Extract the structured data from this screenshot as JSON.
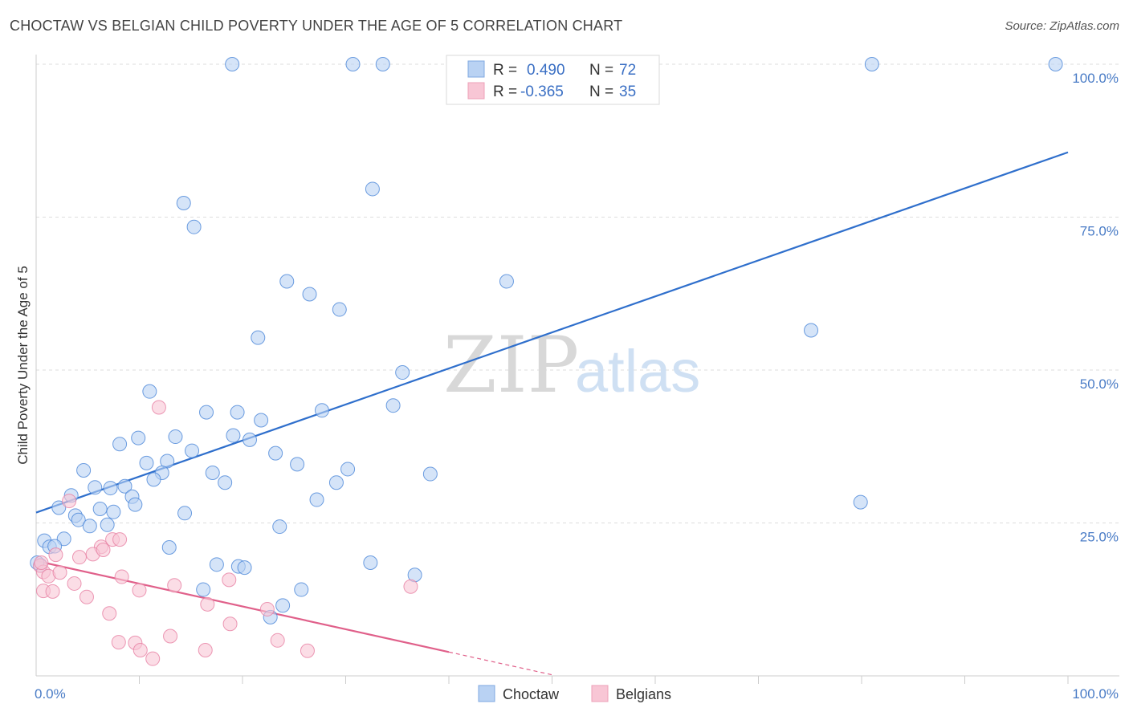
{
  "header": {
    "title": "CHOCTAW VS BELGIAN CHILD POVERTY UNDER THE AGE OF 5 CORRELATION CHART",
    "source": "Source: ZipAtlas.com"
  },
  "watermark": {
    "zip": "ZIP",
    "atlas": "atlas"
  },
  "legend": {
    "rows": [
      {
        "r_label": "R =",
        "r_value": "0.490",
        "n_label": "N =",
        "n_value": "72",
        "color": "#b9d2f3"
      },
      {
        "r_label": "R =",
        "r_value": "-0.365",
        "n_label": "N =",
        "n_value": "35",
        "color": "#f8c6d5"
      }
    ]
  },
  "chart_data": {
    "type": "scatter",
    "title": "CHOCTAW VS BELGIAN CHILD POVERTY UNDER THE AGE OF 5 CORRELATION CHART",
    "xlabel": "",
    "ylabel": "Child Poverty Under the Age of 5",
    "xlim": [
      0,
      100
    ],
    "ylim": [
      0,
      100
    ],
    "x_tick_labels": [
      "0.0%",
      "100.0%"
    ],
    "y_tick_labels": [
      "25.0%",
      "50.0%",
      "75.0%",
      "100.0%"
    ],
    "y_tick_values": [
      25,
      50,
      75,
      100
    ],
    "legend_position": "top-center",
    "series": [
      {
        "name": "Choctaw",
        "color": "#4a86d8",
        "fill": "#b9d2f3",
        "trend": {
          "x": [
            0,
            100
          ],
          "y": [
            26.7,
            85.6
          ],
          "color": "#2f6fcc"
        },
        "points": [
          [
            19,
            100
          ],
          [
            30.7,
            100
          ],
          [
            33.6,
            100
          ],
          [
            81,
            100
          ],
          [
            98.8,
            100
          ],
          [
            32.6,
            79.6
          ],
          [
            14.3,
            77.3
          ],
          [
            15.3,
            73.4
          ],
          [
            24.3,
            64.5
          ],
          [
            45.6,
            64.5
          ],
          [
            26.5,
            62.4
          ],
          [
            29.4,
            59.9
          ],
          [
            75.1,
            56.5
          ],
          [
            21.5,
            55.3
          ],
          [
            35.5,
            49.6
          ],
          [
            11,
            46.5
          ],
          [
            34.6,
            44.2
          ],
          [
            27.7,
            43.4
          ],
          [
            16.5,
            43.1
          ],
          [
            19.5,
            43.1
          ],
          [
            21.8,
            41.8
          ],
          [
            9.9,
            38.9
          ],
          [
            13.5,
            39.1
          ],
          [
            19.1,
            39.3
          ],
          [
            20.7,
            38.6
          ],
          [
            8.1,
            37.9
          ],
          [
            15.1,
            36.8
          ],
          [
            23.2,
            36.4
          ],
          [
            10.7,
            34.8
          ],
          [
            12.7,
            35.1
          ],
          [
            25.3,
            34.6
          ],
          [
            4.6,
            33.6
          ],
          [
            12.2,
            33.2
          ],
          [
            17.1,
            33.2
          ],
          [
            30.2,
            33.8
          ],
          [
            38.2,
            33
          ],
          [
            11.4,
            32.1
          ],
          [
            18.3,
            31.6
          ],
          [
            29.1,
            31.6
          ],
          [
            8.6,
            31
          ],
          [
            5.7,
            30.8
          ],
          [
            7.2,
            30.7
          ],
          [
            9.3,
            29.3
          ],
          [
            3.4,
            29.5
          ],
          [
            27.2,
            28.8
          ],
          [
            79.9,
            28.4
          ],
          [
            9.6,
            28
          ],
          [
            2.2,
            27.5
          ],
          [
            6.2,
            27.3
          ],
          [
            7.5,
            26.8
          ],
          [
            14.4,
            26.6
          ],
          [
            3.8,
            26.2
          ],
          [
            4.1,
            25.5
          ],
          [
            5.2,
            24.5
          ],
          [
            6.9,
            24.7
          ],
          [
            23.6,
            24.4
          ],
          [
            0.8,
            22.1
          ],
          [
            2.7,
            22.4
          ],
          [
            1.3,
            21.1
          ],
          [
            1.8,
            21.2
          ],
          [
            12.9,
            21
          ],
          [
            0.4,
            18.1
          ],
          [
            17.5,
            18.2
          ],
          [
            19.6,
            17.9
          ],
          [
            20.2,
            17.7
          ],
          [
            32.4,
            18.5
          ],
          [
            36.7,
            16.5
          ],
          [
            16.2,
            14.1
          ],
          [
            25.7,
            14.1
          ],
          [
            23.9,
            11.5
          ],
          [
            22.7,
            9.6
          ],
          [
            0.1,
            18.5
          ]
        ]
      },
      {
        "name": "Belgians",
        "color": "#e77fa2",
        "fill": "#f8c6d5",
        "trend": {
          "x": [
            0,
            40
          ],
          "y": [
            18.8,
            3.9
          ],
          "color": "#e0608a",
          "dashed_extension_to_x": 50
        },
        "points": [
          [
            11.9,
            43.9
          ],
          [
            3.2,
            28.6
          ],
          [
            7.4,
            22.3
          ],
          [
            6.3,
            21.1
          ],
          [
            8.1,
            22.3
          ],
          [
            5.5,
            19.9
          ],
          [
            6.5,
            20.6
          ],
          [
            1.9,
            19.8
          ],
          [
            4.2,
            19.4
          ],
          [
            0.4,
            18
          ],
          [
            0.7,
            17
          ],
          [
            1.2,
            16.3
          ],
          [
            2.3,
            16.9
          ],
          [
            3.7,
            15.1
          ],
          [
            8.3,
            16.2
          ],
          [
            13.4,
            14.8
          ],
          [
            18.7,
            15.7
          ],
          [
            36.3,
            14.6
          ],
          [
            0.7,
            13.9
          ],
          [
            1.6,
            13.8
          ],
          [
            10,
            14
          ],
          [
            4.9,
            12.9
          ],
          [
            16.6,
            11.7
          ],
          [
            22.4,
            10.9
          ],
          [
            7.1,
            10.2
          ],
          [
            18.8,
            8.5
          ],
          [
            13,
            6.5
          ],
          [
            8,
            5.5
          ],
          [
            9.6,
            5.4
          ],
          [
            23.4,
            5.8
          ],
          [
            10.1,
            4.2
          ],
          [
            16.4,
            4.2
          ],
          [
            26.3,
            4.1
          ],
          [
            11.3,
            2.8
          ],
          [
            0.5,
            18.5
          ]
        ]
      }
    ]
  }
}
